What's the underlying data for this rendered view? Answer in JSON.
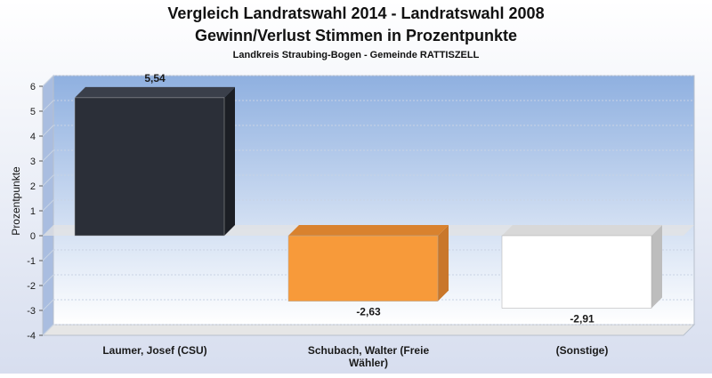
{
  "chart_data": {
    "type": "bar",
    "title": "Vergleich Landratswahl 2014 - Landratswahl 2008",
    "subtitle": "Gewinn/Verlust Stimmen in Prozentpunkte",
    "subsubtitle": "Landkreis Straubing-Bogen - Gemeinde RATTISZELL",
    "ylabel": "Prozentpunkte",
    "xlabel": "",
    "ylim": [
      -4,
      6
    ],
    "yticks": [
      "6",
      "5",
      "4",
      "3",
      "2",
      "1",
      "0",
      "-1",
      "-2",
      "-3",
      "-4"
    ],
    "grid": true,
    "categories": [
      [
        "Laumer, Josef (CSU)"
      ],
      [
        "Schubach, Walter (Freie",
        "Wähler)"
      ],
      [
        "(Sonstige)"
      ]
    ],
    "values": [
      5.54,
      -2.63,
      -2.91
    ],
    "value_labels": [
      "5,54",
      "-2,63",
      "-2,91"
    ],
    "colors": [
      "#2b2f38",
      "#f79a3a",
      "#ffffff"
    ],
    "side_colors": [
      "#1c1f25",
      "#c9772a",
      "#bdbdbd"
    ],
    "top_colors": [
      "#3a3f4a",
      "#d9822e",
      "#d8d8d8"
    ]
  },
  "style": {
    "background": "#dfe5f3",
    "plot_top": "#8fb0e0",
    "plot_bottom": "#ffffff",
    "text": "#1a1a1a"
  }
}
